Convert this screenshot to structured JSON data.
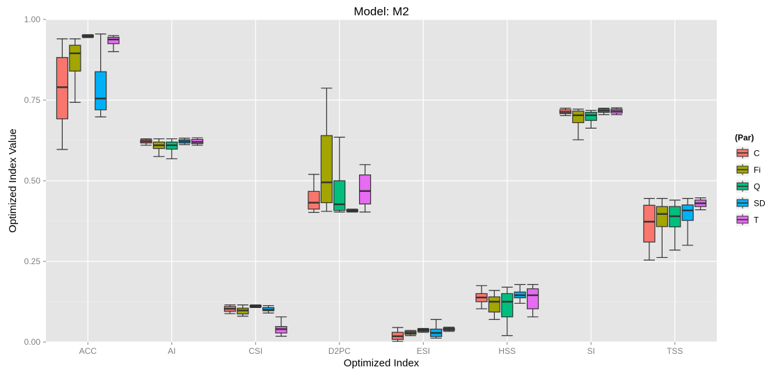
{
  "chart_data": {
    "type": "boxplot",
    "title": "Model: M2",
    "xlabel": "Optimized Index",
    "ylabel": "Optimized Index Value",
    "ylim": [
      0,
      1
    ],
    "yticks": [
      0,
      0.25,
      0.5,
      0.75,
      1.0
    ],
    "ytick_labels": [
      "0.00",
      "0.25",
      "0.50",
      "0.75",
      "1.00"
    ],
    "grid": true,
    "legend_position": "right",
    "legend_title": "(Par)",
    "categories": [
      "ACC",
      "AI",
      "CSI",
      "D2PC",
      "ESI",
      "HSS",
      "SI",
      "TSS"
    ],
    "series": [
      {
        "name": "C",
        "color": "#F8766D",
        "boxes": [
          {
            "min": 0.597,
            "q1": 0.692,
            "median": 0.79,
            "q3": 0.882,
            "max": 0.94
          },
          {
            "min": 0.61,
            "q1": 0.617,
            "median": 0.622,
            "q3": 0.627,
            "max": 0.63
          },
          {
            "min": 0.088,
            "q1": 0.095,
            "median": 0.103,
            "q3": 0.11,
            "max": 0.115
          },
          {
            "min": 0.402,
            "q1": 0.412,
            "median": 0.432,
            "q3": 0.467,
            "max": 0.52
          },
          {
            "min": 0.002,
            "q1": 0.008,
            "median": 0.018,
            "q3": 0.03,
            "max": 0.045
          },
          {
            "min": 0.103,
            "q1": 0.125,
            "median": 0.138,
            "q3": 0.15,
            "max": 0.175
          },
          {
            "min": 0.702,
            "q1": 0.708,
            "median": 0.713,
            "q3": 0.72,
            "max": 0.725
          },
          {
            "min": 0.254,
            "q1": 0.31,
            "median": 0.373,
            "q3": 0.424,
            "max": 0.445
          }
        ]
      },
      {
        "name": "Fi",
        "color": "#A3A500",
        "boxes": [
          {
            "min": 0.743,
            "q1": 0.84,
            "median": 0.895,
            "q3": 0.92,
            "max": 0.94
          },
          {
            "min": 0.575,
            "q1": 0.6,
            "median": 0.61,
            "q3": 0.62,
            "max": 0.63
          },
          {
            "min": 0.08,
            "q1": 0.087,
            "median": 0.098,
            "q3": 0.105,
            "max": 0.115
          },
          {
            "min": 0.405,
            "q1": 0.432,
            "median": 0.495,
            "q3": 0.64,
            "max": 0.787
          },
          {
            "min": 0.02,
            "q1": 0.024,
            "median": 0.028,
            "q3": 0.033,
            "max": 0.036
          },
          {
            "min": 0.07,
            "q1": 0.093,
            "median": 0.125,
            "q3": 0.14,
            "max": 0.16
          },
          {
            "min": 0.627,
            "q1": 0.68,
            "median": 0.703,
            "q3": 0.716,
            "max": 0.722
          },
          {
            "min": 0.262,
            "q1": 0.358,
            "median": 0.397,
            "q3": 0.42,
            "max": 0.445
          }
        ]
      },
      {
        "name": "Q",
        "color": "#00BF7D",
        "boxes": [
          {
            "min": 0.944,
            "q1": 0.946,
            "median": 0.948,
            "q3": 0.951,
            "max": 0.953
          },
          {
            "min": 0.568,
            "q1": 0.598,
            "median": 0.61,
            "q3": 0.62,
            "max": 0.63
          },
          {
            "min": 0.107,
            "q1": 0.109,
            "median": 0.111,
            "q3": 0.113,
            "max": 0.115
          },
          {
            "min": 0.403,
            "q1": 0.408,
            "median": 0.427,
            "q3": 0.5,
            "max": 0.635
          },
          {
            "min": 0.03,
            "q1": 0.033,
            "median": 0.037,
            "q3": 0.04,
            "max": 0.042
          },
          {
            "min": 0.02,
            "q1": 0.078,
            "median": 0.125,
            "q3": 0.15,
            "max": 0.17
          },
          {
            "min": 0.663,
            "q1": 0.687,
            "median": 0.703,
            "q3": 0.712,
            "max": 0.718
          },
          {
            "min": 0.285,
            "q1": 0.357,
            "median": 0.39,
            "q3": 0.42,
            "max": 0.44
          }
        ]
      },
      {
        "name": "SD",
        "color": "#00B0F6",
        "boxes": [
          {
            "min": 0.698,
            "q1": 0.72,
            "median": 0.755,
            "q3": 0.838,
            "max": 0.955
          },
          {
            "min": 0.612,
            "q1": 0.617,
            "median": 0.622,
            "q3": 0.627,
            "max": 0.632
          },
          {
            "min": 0.09,
            "q1": 0.097,
            "median": 0.1,
            "q3": 0.107,
            "max": 0.113
          },
          {
            "min": 0.403,
            "q1": 0.405,
            "median": 0.407,
            "q3": 0.41,
            "max": 0.412
          },
          {
            "min": 0.012,
            "q1": 0.017,
            "median": 0.028,
            "q3": 0.04,
            "max": 0.07
          },
          {
            "min": 0.12,
            "q1": 0.137,
            "median": 0.145,
            "q3": 0.155,
            "max": 0.178
          },
          {
            "min": 0.705,
            "q1": 0.712,
            "median": 0.717,
            "q3": 0.722,
            "max": 0.725
          },
          {
            "min": 0.3,
            "q1": 0.377,
            "median": 0.408,
            "q3": 0.425,
            "max": 0.445
          }
        ]
      },
      {
        "name": "T",
        "color": "#E76BF3",
        "boxes": [
          {
            "min": 0.9,
            "q1": 0.925,
            "median": 0.938,
            "q3": 0.945,
            "max": 0.95
          },
          {
            "min": 0.61,
            "q1": 0.615,
            "median": 0.62,
            "q3": 0.628,
            "max": 0.633
          },
          {
            "min": 0.018,
            "q1": 0.028,
            "median": 0.04,
            "q3": 0.048,
            "max": 0.078
          },
          {
            "min": 0.403,
            "q1": 0.428,
            "median": 0.468,
            "q3": 0.518,
            "max": 0.55
          },
          {
            "min": 0.033,
            "q1": 0.036,
            "median": 0.04,
            "q3": 0.043,
            "max": 0.046
          },
          {
            "min": 0.078,
            "q1": 0.103,
            "median": 0.145,
            "q3": 0.165,
            "max": 0.178
          },
          {
            "min": 0.705,
            "q1": 0.71,
            "median": 0.716,
            "q3": 0.722,
            "max": 0.726
          },
          {
            "min": 0.41,
            "q1": 0.42,
            "median": 0.43,
            "q3": 0.44,
            "max": 0.447
          }
        ]
      }
    ]
  }
}
